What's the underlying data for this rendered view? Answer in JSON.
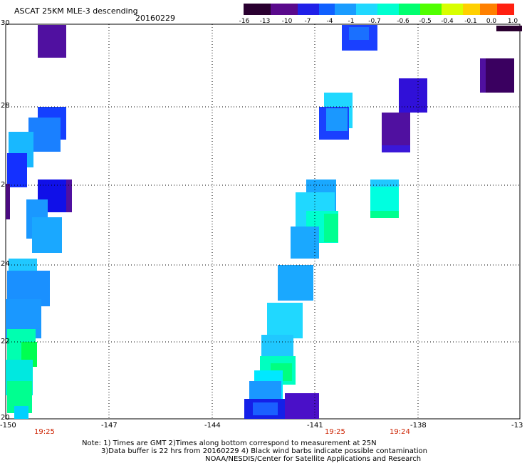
{
  "header": {
    "title": "ASCAT 25KM MLE-3 descending",
    "date": "20160229"
  },
  "colorbar": {
    "ticks": [
      "-16",
      "-13",
      "-10",
      "-7",
      "-4",
      "-1",
      "-0.7",
      "-0.6",
      "-0.5",
      "-0.4",
      "-0.1",
      "0.0",
      "1.0"
    ],
    "colors": [
      "#2a0030",
      "#5a0a8c",
      "#3a18d8",
      "#1438ff",
      "#1a8cff",
      "#20c8ff",
      "#00ffe0",
      "#00ff90",
      "#30ff00",
      "#c8ff00",
      "#ffe000",
      "#ff8800",
      "#ff2800"
    ]
  },
  "axes": {
    "lon_labels": [
      "-150",
      "-147",
      "-144",
      "-141",
      "-138",
      "-13"
    ],
    "lat_labels": [
      "30",
      "28",
      "2",
      "24",
      "22",
      "20"
    ]
  },
  "pass_times": [
    "19:25",
    "19:25",
    "19:24"
  ],
  "notes": {
    "line1": "Note: 1) Times are GMT 2)Times along bottom correspond to measurement at 25N",
    "line2": "3)Data buffer is 22 hrs from 20160229 4) Black wind barbs indicate possible contamination",
    "line3": "NOAA/NESDIS/Center for Satellite Applications and Research"
  }
}
